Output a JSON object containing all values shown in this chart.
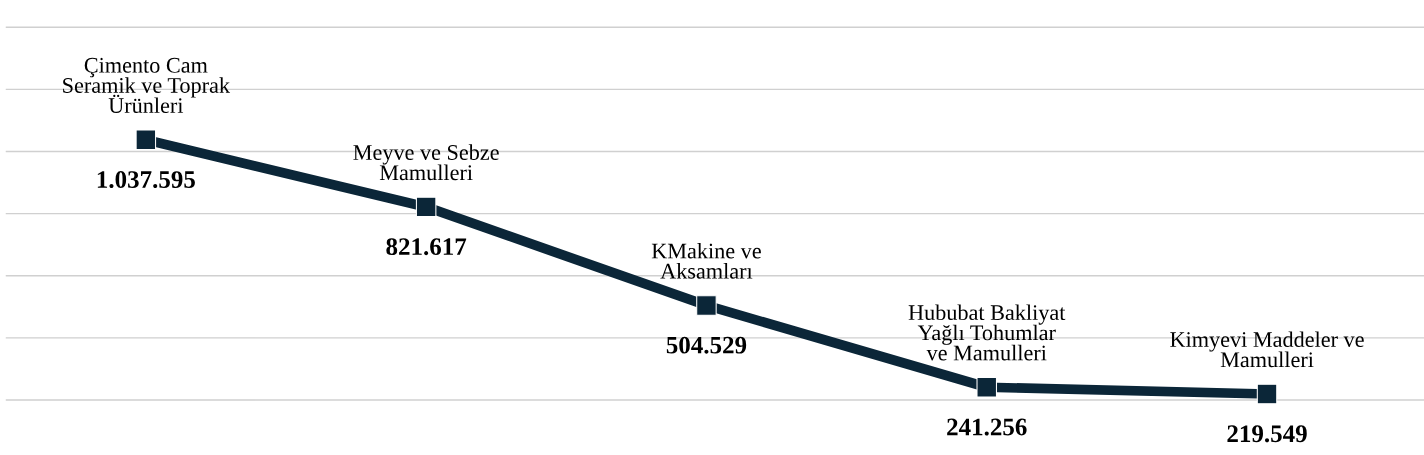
{
  "chart_data": {
    "type": "line",
    "categories": [
      "Çimento Cam\nSeramik ve Toprak\nÜrünleri",
      "Meyve ve Sebze\nMamulleri",
      "KMakine ve\nAksamları",
      "Hububat Bakliyat\nYağlı Tohumlar\nve Mamulleri",
      "Kimyevi Maddeler ve\nMamulleri"
    ],
    "series": [
      {
        "color": "#0b2638",
        "values": [
          1037595,
          821617,
          504529,
          241256,
          219549
        ],
        "value_labels": [
          "1.037.595",
          "821.617",
          "504.529",
          "241.256",
          "219.549"
        ]
      }
    ],
    "grid": "y",
    "marker": "square",
    "line_style": "solid",
    "legend": false
  }
}
